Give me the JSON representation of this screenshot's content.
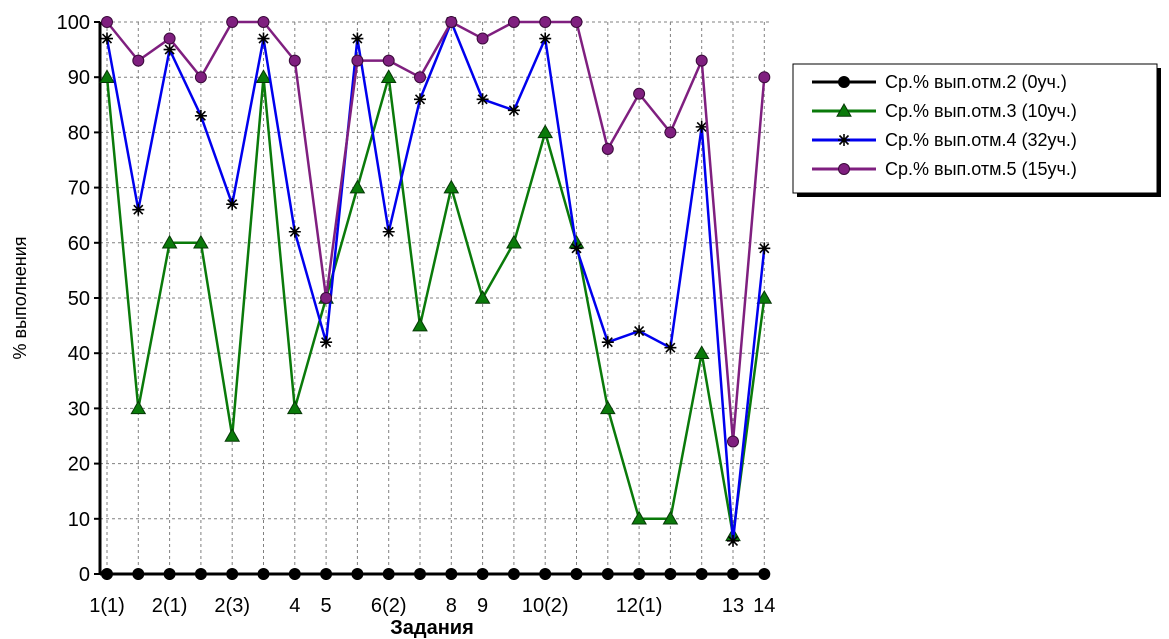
{
  "chart_data": {
    "type": "line",
    "xlabel": "Задания",
    "ylabel": "% выполнения",
    "ylim": [
      0,
      100
    ],
    "yticks": [
      "0",
      "10",
      "20",
      "30",
      "40",
      "50",
      "60",
      "70",
      "80",
      "90",
      "100"
    ],
    "grid": true,
    "legend_position": "top-right",
    "x_count": 22,
    "categories": [
      "1(1)",
      "",
      "2(1)",
      "",
      "2(3)",
      "",
      "4",
      "5",
      "",
      "6(2)",
      "",
      "8",
      "9",
      "",
      "10(2)",
      "",
      "",
      "12(1)",
      "",
      "",
      "13",
      "14"
    ],
    "xtick_labels": [
      {
        "index": 0,
        "text": "1(1)"
      },
      {
        "index": 2,
        "text": "2(1)"
      },
      {
        "index": 4,
        "text": "2(3)"
      },
      {
        "index": 6,
        "text": "4"
      },
      {
        "index": 7,
        "text": "5"
      },
      {
        "index": 9,
        "text": "6(2)"
      },
      {
        "index": 11,
        "text": "8"
      },
      {
        "index": 12,
        "text": "9"
      },
      {
        "index": 14,
        "text": "10(2)"
      },
      {
        "index": 17,
        "text": "12(1)"
      },
      {
        "index": 20,
        "text": "13"
      },
      {
        "index": 21,
        "text": "14"
      }
    ],
    "series": [
      {
        "name": "Ср.% вып.отм.2 (0уч.)",
        "color": "#000000",
        "marker": "circle",
        "values": [
          0,
          0,
          0,
          0,
          0,
          0,
          0,
          0,
          0,
          0,
          0,
          0,
          0,
          0,
          0,
          0,
          0,
          0,
          0,
          0,
          0,
          0
        ]
      },
      {
        "name": "Ср.% вып.отм.3 (10уч.)",
        "color": "#0a7a0a",
        "marker": "triangle",
        "values": [
          90,
          30,
          60,
          60,
          25,
          90,
          30,
          50,
          70,
          90,
          45,
          70,
          50,
          60,
          80,
          60,
          30,
          10,
          10,
          40,
          7,
          50
        ]
      },
      {
        "name": "Ср.% вып.отм.4 (32уч.)",
        "color": "#0000ee",
        "marker": "star",
        "values": [
          97,
          66,
          95,
          83,
          67,
          97,
          62,
          42,
          97,
          62,
          86,
          100,
          86,
          84,
          97,
          59,
          42,
          44,
          41,
          81,
          6,
          59
        ]
      },
      {
        "name": "Ср.% вып.отм.5 (15уч.)",
        "color": "#7f1f7f",
        "marker": "circle",
        "values": [
          100,
          93,
          97,
          90,
          100,
          100,
          93,
          50,
          93,
          93,
          90,
          100,
          97,
          100,
          100,
          100,
          77,
          87,
          80,
          93,
          24,
          90
        ]
      }
    ]
  }
}
